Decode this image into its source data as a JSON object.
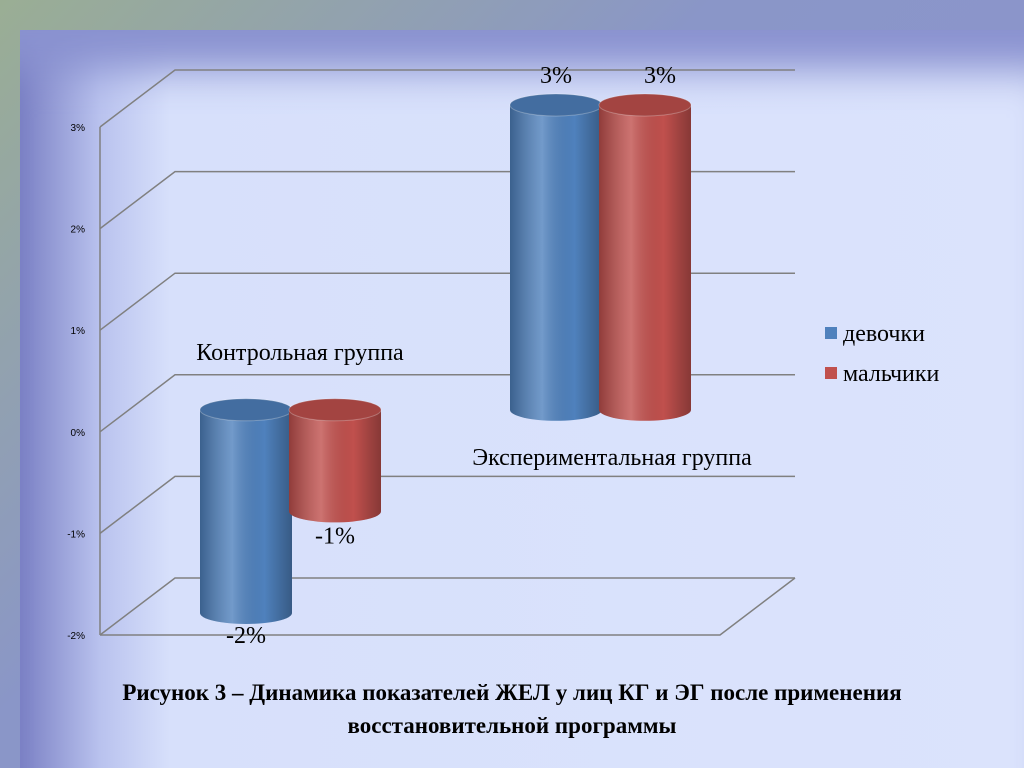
{
  "chart_data": {
    "type": "bar3d",
    "categories": [
      "Контрольная группа",
      "Экспериментальная группа"
    ],
    "series": [
      {
        "name": "девочки",
        "color": "#4f81bd",
        "values": [
          -2,
          3
        ],
        "value_labels": [
          "-2%",
          "3%"
        ]
      },
      {
        "name": "мальчики",
        "color": "#c0504d",
        "values": [
          -1,
          3
        ],
        "value_labels": [
          "-1%",
          "3%"
        ]
      }
    ],
    "ylim": [
      -2,
      3
    ],
    "yticks": [
      {
        "value": -2,
        "label": "-2%"
      },
      {
        "value": -1,
        "label": "-1%"
      },
      {
        "value": 0,
        "label": "0%"
      },
      {
        "value": 1,
        "label": "1%"
      },
      {
        "value": 2,
        "label": "2%"
      },
      {
        "value": 3,
        "label": "3%"
      }
    ],
    "grid": true,
    "legend": "right",
    "caption": "Рисунок 3 – Динамика показателей ЖЕЛ у лиц КГ и ЭГ после применения восстановительной программы"
  }
}
